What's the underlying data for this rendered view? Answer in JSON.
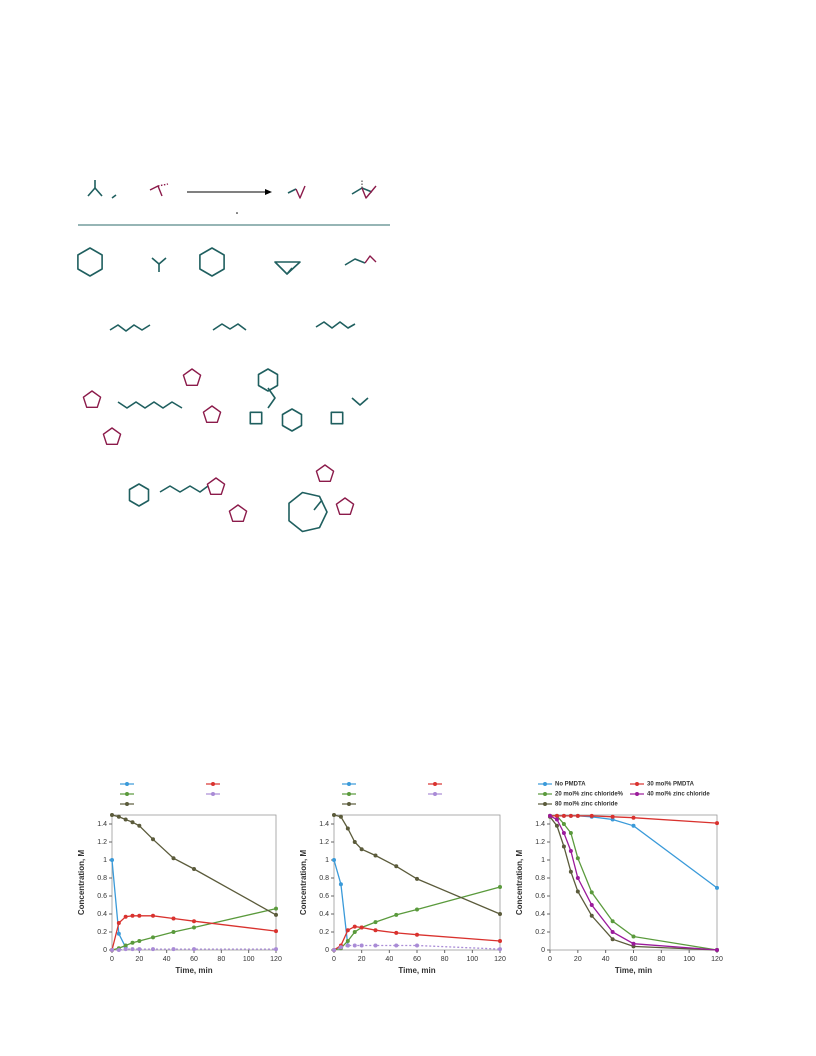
{
  "chart_data": [
    {
      "type": "line",
      "xlabel": "Time, min",
      "ylabel": "Concentration, M",
      "x": [
        0,
        5,
        10,
        15,
        20,
        30,
        45,
        60,
        120
      ],
      "xlim": [
        0,
        120
      ],
      "xticks": [
        0,
        20,
        40,
        60,
        80,
        100,
        120
      ],
      "ylim": [
        0,
        1.5
      ],
      "yticks": [
        0,
        0.2,
        0.4,
        0.6,
        0.8,
        1,
        1.2,
        1.4
      ],
      "series": [
        {
          "color": "#3a9ad9",
          "values": [
            1.0,
            0.18,
            0.03,
            null,
            null,
            null,
            null,
            null,
            null
          ]
        },
        {
          "color": "#5a9a3c",
          "values": [
            0,
            0.02,
            0.05,
            0.08,
            0.1,
            0.14,
            0.2,
            0.25,
            0.46
          ]
        },
        {
          "color": "#5b5b3b",
          "values": [
            1.5,
            1.48,
            1.45,
            1.42,
            1.38,
            1.23,
            1.02,
            0.9,
            0.39
          ]
        },
        {
          "color": "#d9322e",
          "values": [
            0,
            0.3,
            0.37,
            0.38,
            0.38,
            0.38,
            0.35,
            0.32,
            0.21
          ]
        },
        {
          "color": "#a98bd6",
          "values": [
            0,
            0,
            0.01,
            0.01,
            0.01,
            0.01,
            0.01,
            0.01,
            0.01
          ]
        }
      ]
    },
    {
      "type": "line",
      "xlabel": "Time, min",
      "ylabel": "Concentration, M",
      "x": [
        0,
        5,
        10,
        15,
        20,
        30,
        45,
        60,
        120
      ],
      "xlim": [
        0,
        120
      ],
      "xticks": [
        0,
        20,
        40,
        60,
        80,
        100,
        120
      ],
      "ylim": [
        0,
        1.5
      ],
      "yticks": [
        0,
        0.2,
        0.4,
        0.6,
        0.8,
        1,
        1.2,
        1.4
      ],
      "series": [
        {
          "color": "#3a9ad9",
          "values": [
            1.0,
            0.73,
            0.05,
            null,
            null,
            null,
            null,
            null,
            null
          ]
        },
        {
          "color": "#5a9a3c",
          "values": [
            0,
            0.02,
            0.1,
            0.2,
            0.25,
            0.31,
            0.39,
            0.45,
            0.7
          ]
        },
        {
          "color": "#5b5b3b",
          "values": [
            1.5,
            1.48,
            1.35,
            1.2,
            1.12,
            1.05,
            0.93,
            0.79,
            0.4
          ]
        },
        {
          "color": "#d9322e",
          "values": [
            0,
            0.05,
            0.22,
            0.26,
            0.25,
            0.22,
            0.19,
            0.17,
            0.1
          ]
        },
        {
          "color": "#a98bd6",
          "values": [
            0,
            0.03,
            0.05,
            0.05,
            0.05,
            0.05,
            0.05,
            0.05,
            0.01
          ]
        }
      ]
    },
    {
      "type": "line",
      "xlabel": "Time, min",
      "ylabel": "Concentration, M",
      "x": [
        0,
        5,
        10,
        15,
        20,
        30,
        45,
        60,
        120
      ],
      "xlim": [
        0,
        120
      ],
      "xticks": [
        0,
        20,
        40,
        60,
        80,
        100,
        120
      ],
      "ylim": [
        0,
        1.5
      ],
      "yticks": [
        0,
        0.2,
        0.4,
        0.6,
        0.8,
        1,
        1.2,
        1.4
      ],
      "series": [
        {
          "name": "No PMDTA",
          "color": "#3a9ad9",
          "values": [
            1.49,
            1.49,
            1.49,
            1.49,
            1.49,
            1.48,
            1.45,
            1.38,
            0.69
          ]
        },
        {
          "name": "20 mol% zinc chloride%",
          "color": "#5a9a3c",
          "values": [
            1.49,
            1.49,
            1.4,
            1.3,
            1.02,
            0.64,
            0.32,
            0.15,
            0
          ]
        },
        {
          "name": "80 mol% zinc chloride",
          "color": "#5b5b3b",
          "values": [
            1.48,
            1.38,
            1.15,
            0.87,
            0.65,
            0.38,
            0.12,
            0.04,
            0
          ]
        },
        {
          "name": "30 mol% PMDTA",
          "color": "#d9322e",
          "values": [
            1.49,
            1.49,
            1.49,
            1.49,
            1.49,
            1.49,
            1.48,
            1.47,
            1.41
          ]
        },
        {
          "name": "40 mol% zinc chloride",
          "color": "#9b1a9b",
          "values": [
            1.49,
            1.45,
            1.3,
            1.1,
            0.8,
            0.5,
            0.2,
            0.07,
            0
          ]
        }
      ]
    }
  ]
}
